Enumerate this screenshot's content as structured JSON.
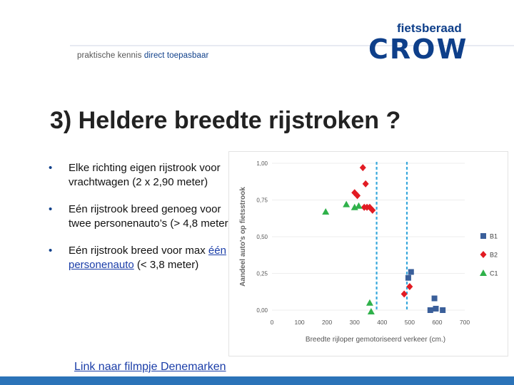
{
  "header": {
    "tagline_prefix": "praktische kennis",
    "tagline_accent": "direct toepasbaar",
    "brand_sub": "fietsberaad",
    "brand": "CROW"
  },
  "title": "3) Heldere breedte rijstroken ?",
  "bullets": [
    {
      "text": "Elke richting eigen rijstrook voor vrachtwagen (2 x 2,90 meter)"
    },
    {
      "text": "Eén rijstrook breed genoeg voor twee personenauto’s (> 4,8 meter)"
    },
    {
      "pre": "Eén rijstrook breed voor max ",
      "link": "één personenauto",
      "post": " (< 3,8 meter)"
    }
  ],
  "film_link": "Link naar filmpje Denemarken",
  "colors": {
    "brand_blue": "#0e3f8a",
    "b1": "#3a5f9a",
    "b2": "#e21b23",
    "c1": "#2fb14a",
    "dashed": "#3aa9dd"
  },
  "chart_data": {
    "type": "scatter",
    "xlabel": "Breedte rijloper gemotoriseerd verkeer (cm.)",
    "ylabel": "Aandeel auto's op fietsstrook",
    "xlim": [
      0,
      700
    ],
    "ylim": [
      0,
      1
    ],
    "xticks": [
      "0",
      "100",
      "200",
      "300",
      "400",
      "500",
      "600",
      "700"
    ],
    "yticks": [
      "0,00",
      "0,25",
      "0,50",
      "0,75",
      "1,00"
    ],
    "legend_position": "right",
    "series": [
      {
        "name": "B1",
        "marker": "square",
        "points": [
          [
            495,
            0.22
          ],
          [
            505,
            0.26
          ],
          [
            575,
            0.0
          ],
          [
            595,
            0.01
          ],
          [
            590,
            0.08
          ],
          [
            620,
            0.0
          ]
        ]
      },
      {
        "name": "B2",
        "marker": "diamond",
        "points": [
          [
            330,
            0.97
          ],
          [
            340,
            0.86
          ],
          [
            300,
            0.8
          ],
          [
            310,
            0.78
          ],
          [
            335,
            0.7
          ],
          [
            345,
            0.7
          ],
          [
            355,
            0.7
          ],
          [
            365,
            0.68
          ],
          [
            480,
            0.11
          ],
          [
            500,
            0.16
          ]
        ]
      },
      {
        "name": "C1",
        "marker": "triangle",
        "points": [
          [
            195,
            0.67
          ],
          [
            270,
            0.72
          ],
          [
            300,
            0.7
          ],
          [
            315,
            0.71
          ],
          [
            355,
            0.05
          ],
          [
            360,
            -0.01
          ]
        ]
      }
    ],
    "reference_lines_x": [
      380,
      490
    ]
  }
}
